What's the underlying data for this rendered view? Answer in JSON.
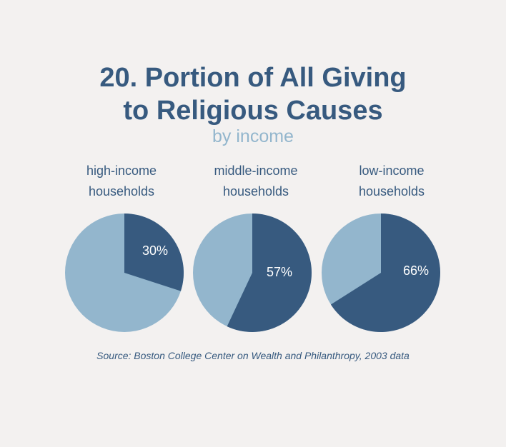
{
  "header": {
    "title_line1": "20. Portion of All Giving",
    "title_line2": "to Religious Causes",
    "subtitle": "by income"
  },
  "colors": {
    "religious": "#375a7f",
    "other": "#93b6cd",
    "background": "#f3f1f0",
    "label_text": "#ffffff"
  },
  "chart_data": [
    {
      "type": "pie",
      "label_line1": "high-income",
      "label_line2": "households",
      "value": 30,
      "value_label": "30%"
    },
    {
      "type": "pie",
      "label_line1": "middle-income",
      "label_line2": "households",
      "value": 57,
      "value_label": "57%"
    },
    {
      "type": "pie",
      "label_line1": "low-income",
      "label_line2": "households",
      "value": 66,
      "value_label": "66%"
    }
  ],
  "footer": {
    "source": "Source: Boston College Center on Wealth and Philanthropy, 2003 data"
  }
}
